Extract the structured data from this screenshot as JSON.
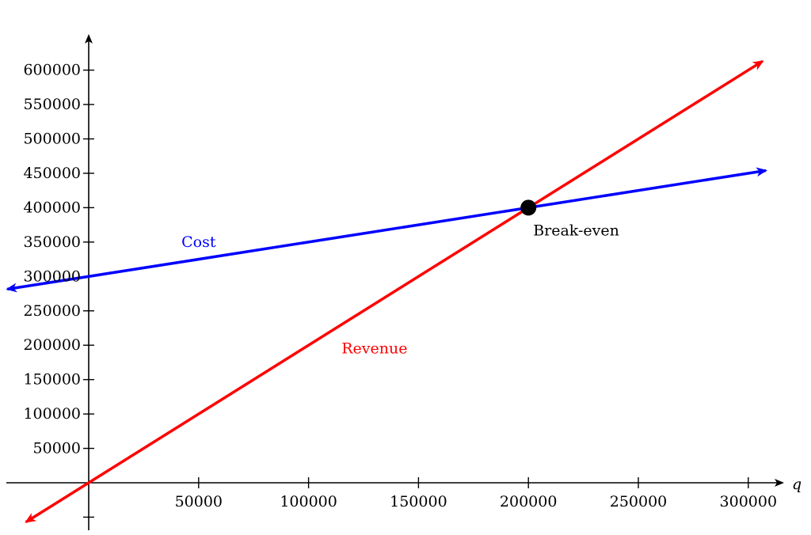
{
  "chart_data": {
    "type": "line",
    "title": "",
    "xlabel": "q",
    "ylabel": "",
    "xlim": [
      -37000,
      315000
    ],
    "ylim": [
      -70000,
      650000
    ],
    "x_ticks": [
      50000,
      100000,
      150000,
      200000,
      250000,
      300000
    ],
    "y_ticks": [
      50000,
      100000,
      150000,
      200000,
      250000,
      300000,
      350000,
      400000,
      450000,
      500000,
      550000,
      600000
    ],
    "extra_y_ticks_unlabeled": [
      -50000
    ],
    "grid": false,
    "series": [
      {
        "name": "Cost",
        "color": "#0000ff",
        "intercept": 300000,
        "slope": 0.5,
        "x_range": [
          -37000,
          308000
        ],
        "arrows": "both"
      },
      {
        "name": "Revenue",
        "color": "#ff0000",
        "intercept": 0,
        "slope": 2,
        "x_range": [
          -28500,
          306500
        ],
        "arrows": "both"
      }
    ],
    "annotations": [
      {
        "text": "Break-even",
        "x": 200000,
        "y": 400000,
        "marker": "filled-circle",
        "color": "#000000"
      }
    ],
    "series_label_positions": {
      "Cost": {
        "x": 50000,
        "y": 350000
      },
      "Revenue": {
        "x": 130000,
        "y": 195000
      }
    }
  }
}
